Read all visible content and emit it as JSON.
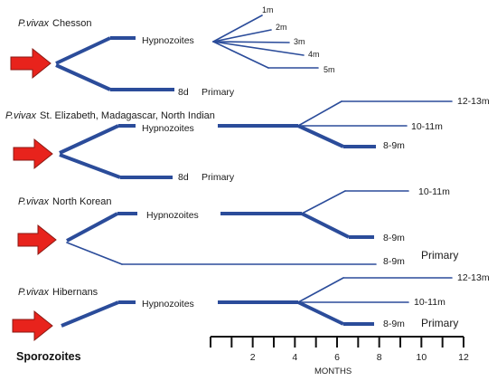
{
  "colors": {
    "branch": "#2b4c9a",
    "arrow": "#e8231c"
  },
  "species": "P.vivax",
  "strains": [
    {
      "name": "Chesson",
      "hypnozoites_label": "Hypnozoites",
      "primary_day": "8d",
      "primary_label": "Primary",
      "relapses": [
        "1m",
        "2m",
        "3m",
        "4m",
        "5m"
      ]
    },
    {
      "name": "St. Elizabeth, Madagascar, North Indian",
      "hypnozoites_label": "Hypnozoites",
      "primary_day": "8d",
      "primary_label": "Primary",
      "relapses": [
        "12-13m",
        "10-11m",
        "8-9m"
      ]
    },
    {
      "name": "North Korean",
      "hypnozoites_label": "Hypnozoites",
      "primary_day": "8-9m",
      "primary_label": "Primary",
      "relapses": [
        "10-11m",
        "8-9m"
      ]
    },
    {
      "name": "Hibernans",
      "hypnozoites_label": "Hypnozoites",
      "primary_day": "8-9m",
      "primary_label": "Primary",
      "relapses": [
        "12-13m",
        "10-11m"
      ]
    }
  ],
  "sporozoites_label": "Sporozoites",
  "axis": {
    "title": "MONTHS",
    "ticks": [
      "2",
      "4",
      "6",
      "8",
      "10",
      "12"
    ]
  }
}
